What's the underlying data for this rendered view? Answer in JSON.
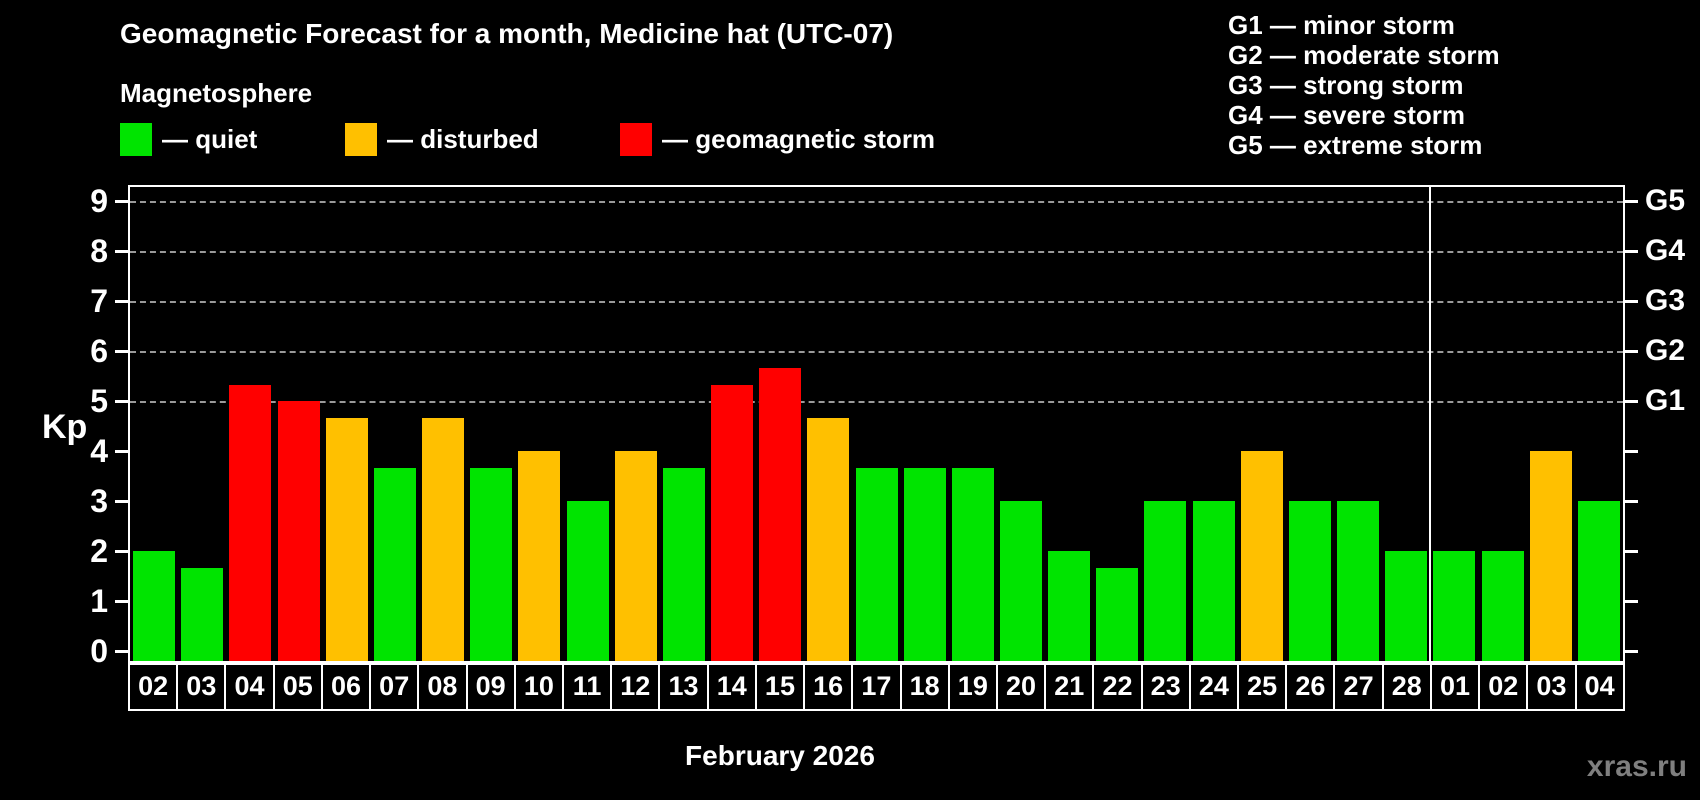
{
  "title": "Geomagnetic Forecast for a month, Medicine hat (UTC-07)",
  "subtitle": "Magnetosphere",
  "legend": {
    "quiet": "— quiet",
    "disturbed": "— disturbed",
    "storm": "— geomagnetic storm"
  },
  "g_scale_legend": [
    "G1 — minor storm",
    "G2 — moderate storm",
    "G3 — strong storm",
    "G4 — severe storm",
    "G5 — extreme storm"
  ],
  "watermark": "xras.ru",
  "colors": {
    "quiet": "#00e400",
    "disturbed": "#ffc000",
    "storm": "#ff0000",
    "background": "#000000",
    "grid": "#9a9a9a",
    "axis": "#ffffff",
    "watermark": "#7f7f7f"
  },
  "chart_data": {
    "type": "bar",
    "title": "Geomagnetic Forecast for a month, Medicine hat (UTC-07)",
    "subtitle": "Magnetosphere",
    "ylabel": "Kp",
    "xlabel": "February 2026",
    "month_label": "February 2026",
    "ylim": [
      0,
      9.3
    ],
    "yticks": [
      0,
      1,
      2,
      3,
      4,
      5,
      6,
      7,
      8,
      9
    ],
    "grid_levels": [
      5,
      6,
      7,
      8,
      9
    ],
    "grid_style": "dashed",
    "legend_position": "top",
    "right_axis": [
      {
        "label": "G1",
        "kp": 5
      },
      {
        "label": "G2",
        "kp": 6
      },
      {
        "label": "G3",
        "kp": 7
      },
      {
        "label": "G4",
        "kp": 8
      },
      {
        "label": "G5",
        "kp": 9
      }
    ],
    "categories": [
      "02",
      "03",
      "04",
      "05",
      "06",
      "07",
      "08",
      "09",
      "10",
      "11",
      "12",
      "13",
      "14",
      "15",
      "16",
      "17",
      "18",
      "19",
      "20",
      "21",
      "22",
      "23",
      "24",
      "25",
      "26",
      "27",
      "28",
      "01",
      "02",
      "03",
      "04"
    ],
    "values": [
      2,
      1.67,
      5.33,
      5,
      4.67,
      3.67,
      4.67,
      3.67,
      4,
      3,
      4,
      3.67,
      5.33,
      5.67,
      4.67,
      3.67,
      3.67,
      3.67,
      3,
      2,
      1.67,
      3,
      3,
      4,
      3,
      3,
      2,
      2,
      2,
      4,
      3
    ],
    "states": [
      "quiet",
      "quiet",
      "storm",
      "storm",
      "disturbed",
      "quiet",
      "disturbed",
      "quiet",
      "disturbed",
      "quiet",
      "disturbed",
      "quiet",
      "storm",
      "storm",
      "disturbed",
      "quiet",
      "quiet",
      "quiet",
      "quiet",
      "quiet",
      "quiet",
      "quiet",
      "quiet",
      "disturbed",
      "quiet",
      "quiet",
      "quiet",
      "quiet",
      "quiet",
      "disturbed",
      "quiet"
    ],
    "march_start_index": 27
  }
}
